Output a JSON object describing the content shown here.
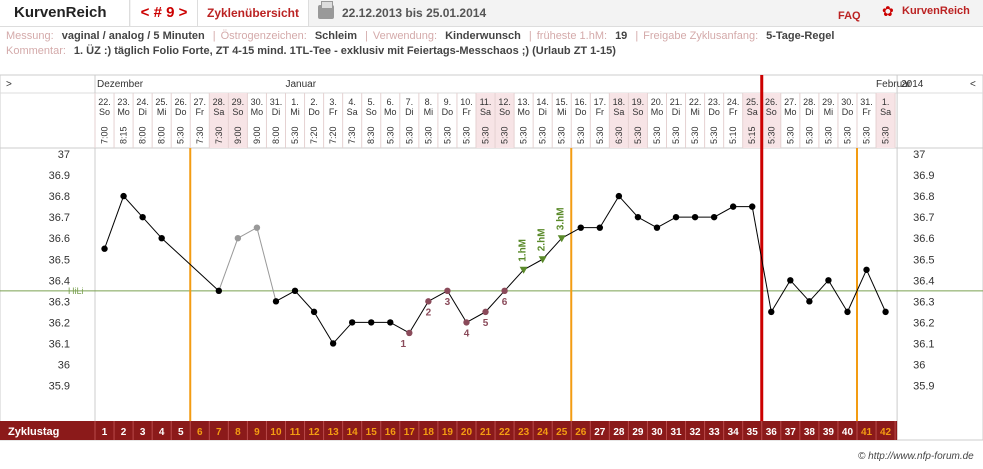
{
  "header": {
    "logo": "KurvenReich",
    "cycle_label": "< # 9 >",
    "overview_label": "Zyklenübersicht",
    "date_range": "22.12.2013 bis 25.01.2014",
    "faq": "FAQ",
    "brand": "KurvenReich"
  },
  "info": {
    "measurement_label": "Messung:",
    "measurement_value": "vaginal / analog / 5 Minuten",
    "estrogen_label": "Östrogenzeichen:",
    "estrogen_value": "Schleim",
    "usage_label": "Verwendung:",
    "usage_value": "Kinderwunsch",
    "earliest_label": "früheste 1.hM:",
    "earliest_value": "19",
    "release_label": "Freigabe Zyklusanfang:",
    "release_value": "5-Tage-Regel",
    "comment_label": "Kommentar:",
    "comment_value": "1. ÜZ :) täglich Folio Forte, ZT 4-15 mind. 1TL-Tee - exklusiv mit Feiertags-Messchaos ;) (Urlaub ZT 1-15)"
  },
  "chart_data": {
    "type": "line",
    "nav_prev": ">",
    "nav_next": "<",
    "year_label": "2014",
    "months": [
      {
        "label": "Dezember",
        "day_index": 0
      },
      {
        "label": "Januar",
        "day_index": 10
      },
      {
        "label": "Februar",
        "day_index": 41
      }
    ],
    "dates": [
      "22.",
      "23.",
      "24.",
      "25.",
      "26.",
      "27.",
      "28.",
      "29.",
      "30.",
      "31.",
      "1.",
      "2.",
      "3.",
      "4.",
      "5.",
      "6.",
      "7.",
      "8.",
      "9.",
      "10.",
      "11.",
      "12.",
      "13.",
      "14.",
      "15.",
      "16.",
      "17.",
      "18.",
      "19.",
      "20.",
      "21.",
      "22.",
      "23.",
      "24.",
      "25.",
      "26.",
      "27.",
      "28.",
      "29.",
      "30.",
      "31.",
      "1."
    ],
    "weekdays": [
      "So",
      "Mo",
      "Di",
      "Mi",
      "Do",
      "Fr",
      "Sa",
      "So",
      "Mo",
      "Di",
      "Mi",
      "Do",
      "Fr",
      "Sa",
      "So",
      "Mo",
      "Di",
      "Mi",
      "Do",
      "Fr",
      "Sa",
      "So",
      "Mo",
      "Di",
      "Mi",
      "Do",
      "Fr",
      "Sa",
      "So",
      "Mo",
      "Di",
      "Mi",
      "Do",
      "Fr",
      "Sa",
      "So",
      "Mo",
      "Di",
      "Mi",
      "Do",
      "Fr",
      "Sa"
    ],
    "times": [
      "7:00",
      "8:15",
      "8:00",
      "8:00",
      "5:30",
      "7:30",
      "7:30",
      "9:00",
      "9:00",
      "8:00",
      "5:30",
      "7:20",
      "7:20",
      "7:30",
      "8:30",
      "5:30",
      "5:30",
      "5:30",
      "5:30",
      "5:30",
      "5:30",
      "5:30",
      "5:30",
      "5:30",
      "5:30",
      "5:30",
      "5:30",
      "6:30",
      "5:30",
      "5:30",
      "5:30",
      "5:30",
      "5:30",
      "5:10",
      "5:15",
      "5:30",
      "5:30",
      "5:30",
      "5:30",
      "5:30",
      "5:30",
      "5:30"
    ],
    "cycle_days": [
      "1",
      "2",
      "3",
      "4",
      "5",
      "6",
      "7",
      "8",
      "9",
      "10",
      "11",
      "12",
      "13",
      "14",
      "15",
      "16",
      "17",
      "18",
      "19",
      "20",
      "21",
      "22",
      "23",
      "24",
      "25",
      "26",
      "27",
      "28",
      "29",
      "30",
      "31",
      "32",
      "33",
      "34",
      "35",
      "36",
      "37",
      "38",
      "39",
      "40",
      "41",
      "42"
    ],
    "temps": [
      36.55,
      36.8,
      36.7,
      36.6,
      null,
      null,
      36.35,
      36.6,
      36.65,
      36.3,
      36.35,
      36.25,
      36.1,
      36.2,
      36.2,
      36.2,
      36.15,
      36.3,
      36.35,
      36.2,
      36.25,
      36.35,
      36.45,
      36.5,
      36.6,
      36.65,
      36.65,
      36.8,
      36.7,
      36.65,
      36.7,
      36.7,
      36.7,
      36.75,
      36.75,
      36.25,
      36.4,
      36.3,
      36.4,
      36.25,
      36.45,
      36.25
    ],
    "excluded_indices": [
      7,
      8
    ],
    "y_ticks": [
      "37",
      "36.9",
      "36.8",
      "36.7",
      "36.6",
      "36.5",
      "36.4",
      "36.3",
      "36.2",
      "36.1",
      "36",
      "35.9"
    ],
    "ylim": [
      35.8,
      37.05
    ],
    "hili_label": "HiLi",
    "hili_value": 36.35,
    "low_labels": [
      {
        "index": 16,
        "label": "1"
      },
      {
        "index": 17,
        "label": "2"
      },
      {
        "index": 18,
        "label": "3"
      },
      {
        "index": 19,
        "label": "4"
      },
      {
        "index": 20,
        "label": "5"
      },
      {
        "index": 21,
        "label": "6"
      }
    ],
    "high_labels": [
      {
        "index": 22,
        "label": "1.hM"
      },
      {
        "index": 23,
        "label": "2.hM"
      },
      {
        "index": 24,
        "label": "3.hM"
      }
    ],
    "cycle_row_label": "Zyklustag",
    "shaded_day_indices": [
      6,
      7,
      20,
      21,
      27,
      28,
      34,
      35,
      41
    ],
    "orange_day_range": [
      5,
      25
    ],
    "orange_extra_indices": [
      40,
      41
    ],
    "vertical_markers": [
      {
        "after_index": 4,
        "color": "#f39c12"
      },
      {
        "after_index": 24,
        "color": "#f39c12"
      },
      {
        "after_index": 34,
        "color": "#cc0000"
      },
      {
        "after_index": 39,
        "color": "#f39c12"
      }
    ],
    "colors": {
      "line": "#000000",
      "excluded": "#999999",
      "low": "#8a4a5a",
      "high": "#5a8a2a",
      "hili": "#7aa050",
      "band": "#8b1a1a",
      "orange": "#f39c12",
      "red": "#cc0000",
      "shade": "#f7e4e6"
    }
  },
  "footer": "© http://www.nfp-forum.de"
}
